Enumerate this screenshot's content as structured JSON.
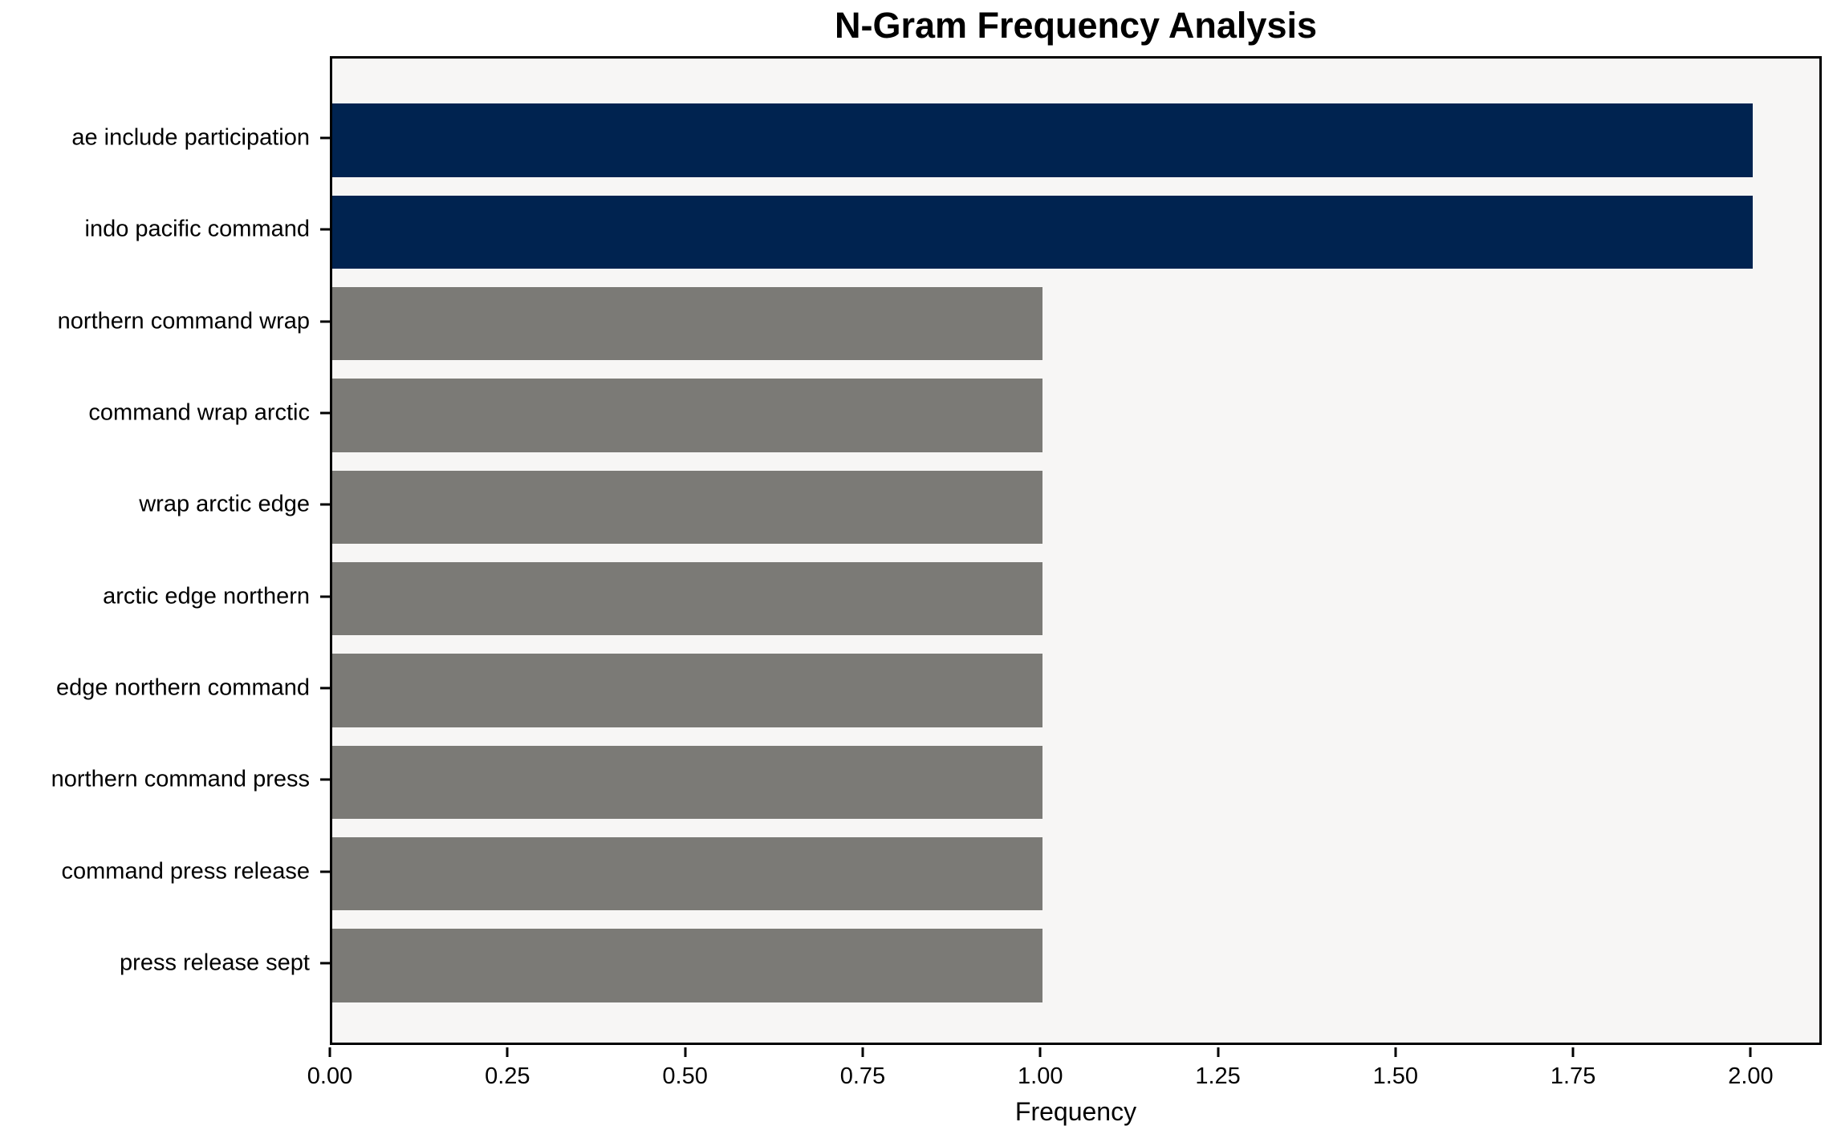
{
  "title": "N-Gram Frequency Analysis",
  "chart_data": {
    "type": "bar",
    "orientation": "horizontal",
    "title": "N-Gram Frequency Analysis",
    "xlabel": "Frequency",
    "ylabel": "",
    "categories": [
      "ae include participation",
      "indo pacific command",
      "northern command wrap",
      "command wrap arctic",
      "wrap arctic edge",
      "arctic edge northern",
      "edge northern command",
      "northern command press",
      "command press release",
      "press release sept"
    ],
    "values": [
      2,
      2,
      1,
      1,
      1,
      1,
      1,
      1,
      1,
      1
    ],
    "bar_colors": [
      "#002350",
      "#002350",
      "#7b7a76",
      "#7b7a76",
      "#7b7a76",
      "#7b7a76",
      "#7b7a76",
      "#7b7a76",
      "#7b7a76",
      "#7b7a76"
    ],
    "xlim": [
      0,
      2.1
    ],
    "xticks": [
      0.0,
      0.25,
      0.5,
      0.75,
      1.0,
      1.25,
      1.5,
      1.75,
      2.0
    ],
    "xtick_labels": [
      "0.00",
      "0.25",
      "0.50",
      "0.75",
      "1.00",
      "1.25",
      "1.50",
      "1.75",
      "2.00"
    ],
    "grid": false,
    "legend": null,
    "plot_background": "#f7f6f5",
    "colors": {
      "highlight": "#002350",
      "default": "#7b7a76"
    }
  }
}
